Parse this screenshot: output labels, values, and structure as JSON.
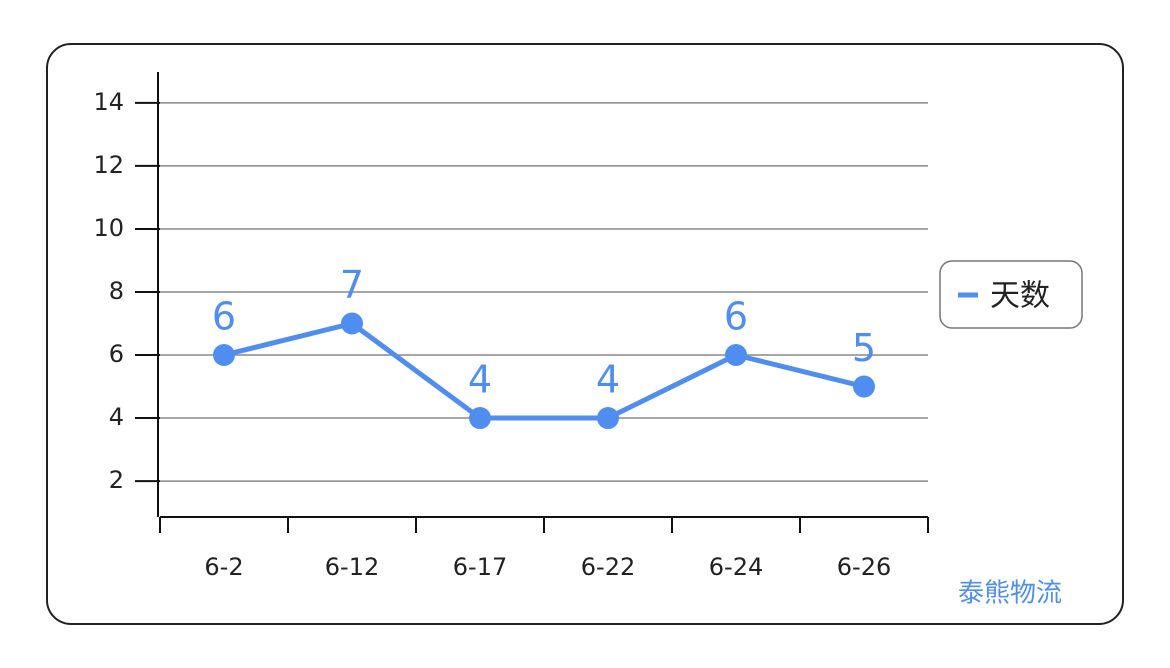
{
  "chart_data": {
    "type": "line",
    "categories": [
      "6-2",
      "6-12",
      "6-17",
      "6-22",
      "6-24",
      "6-26"
    ],
    "series": [
      {
        "name": "天数",
        "color": "#4f8ef0",
        "values": [
          6,
          7,
          4,
          4,
          6,
          5
        ]
      }
    ],
    "ylim": [
      0.86,
      14.98
    ],
    "yticks": [
      2,
      4,
      6,
      8,
      10,
      12,
      14
    ],
    "grid": true,
    "legend": "right",
    "watermark": "泰熊物流"
  }
}
